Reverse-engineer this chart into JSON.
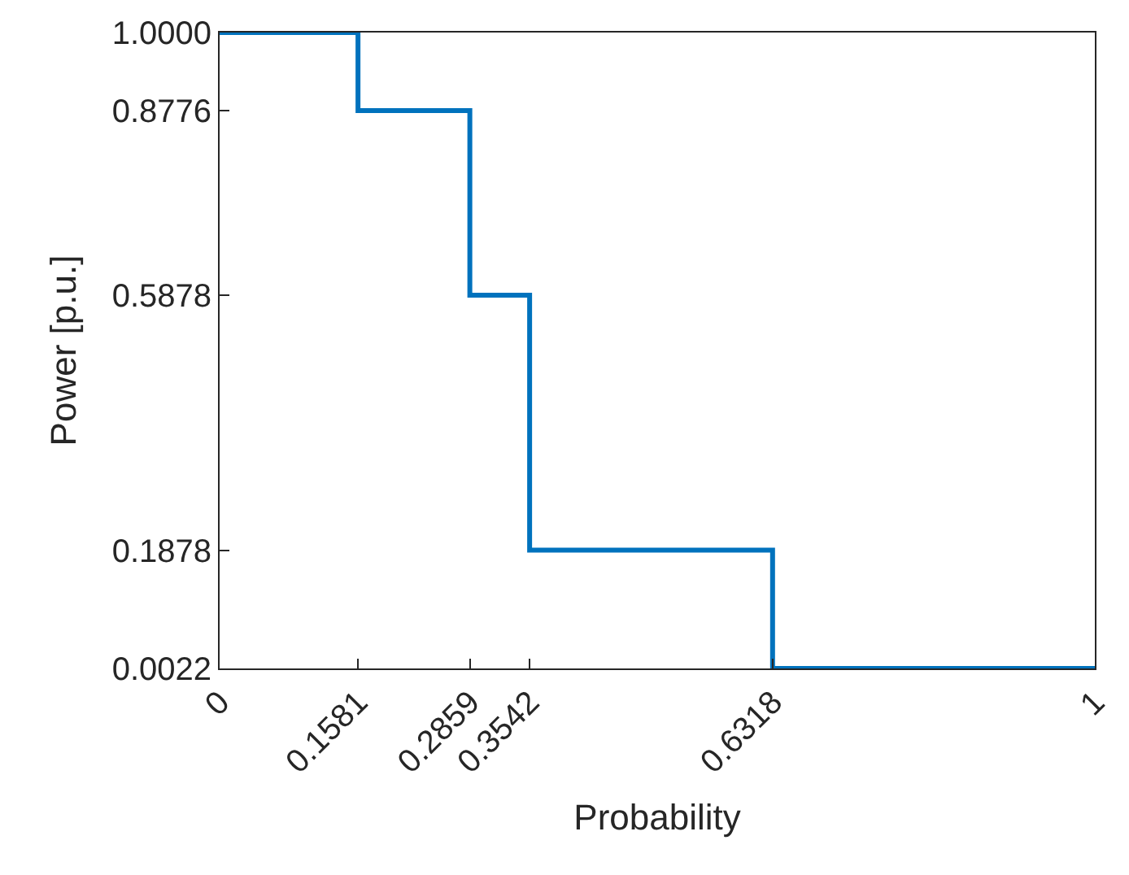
{
  "chart_data": {
    "type": "step",
    "xlabel": "Probability",
    "ylabel": "Power [p.u.]",
    "x": [
      0,
      0.1581,
      0.2859,
      0.3542,
      0.6318,
      1
    ],
    "series": [
      {
        "color": "#0072bd",
        "values": [
          1,
          0.8776,
          0.5878,
          0.1878,
          0.0022,
          0.0022
        ]
      }
    ],
    "xlim": [
      0,
      1
    ],
    "ylim": [
      0.0022,
      1
    ],
    "xticks": [
      0,
      0.1581,
      0.2859,
      0.3542,
      0.6318,
      1
    ],
    "yticks": [
      0.0022,
      0.1878,
      0.5878,
      0.8776,
      {
        "value": 1,
        "label": "1.0000"
      }
    ],
    "line_style": "solid"
  }
}
